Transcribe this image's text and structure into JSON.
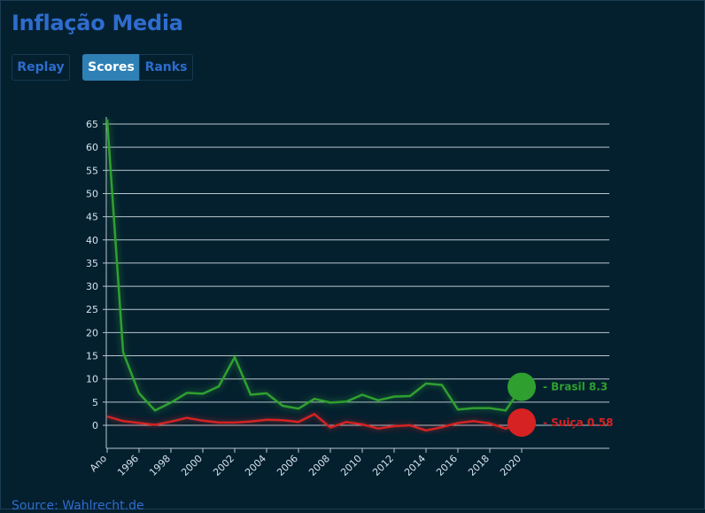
{
  "header": {
    "title": "Inflação Media"
  },
  "controls": {
    "replay_label": "Replay",
    "scores_label": "Scores",
    "ranks_label": "Ranks",
    "active": "Scores"
  },
  "footer": {
    "source_label": "Source: Wahlrecht.de"
  },
  "colors": {
    "background": "#04202f",
    "accent": "#2e6ccd",
    "grid": "#b9c6d0",
    "brasil": "#2fa02f",
    "suica": "#d62222"
  },
  "chart_data": {
    "type": "line",
    "title": "Inflação Media",
    "xlabel": "Ano",
    "ylabel": "",
    "x_tick_labels": [
      "Ano",
      "1996",
      "1998",
      "2000",
      "2002",
      "2004",
      "2006",
      "2008",
      "2010",
      "2012",
      "2014",
      "2016",
      "2018",
      "2020"
    ],
    "y_ticks": [
      0,
      5,
      10,
      15,
      20,
      25,
      30,
      35,
      40,
      45,
      50,
      55,
      60,
      65
    ],
    "ylim": [
      -5,
      68
    ],
    "xlim": [
      1994,
      2026
    ],
    "grid": true,
    "x": [
      1994,
      1995,
      1996,
      1997,
      1998,
      1999,
      2000,
      2001,
      2002,
      2003,
      2004,
      2005,
      2006,
      2007,
      2008,
      2009,
      2010,
      2011,
      2012,
      2013,
      2014,
      2015,
      2016,
      2017,
      2018,
      2019,
      2020
    ],
    "series": [
      {
        "name": "Brasil",
        "color": "#2fa02f",
        "values": [
          66.0,
          15.8,
          6.9,
          3.2,
          4.9,
          7.0,
          6.8,
          8.4,
          14.7,
          6.6,
          6.9,
          4.2,
          3.6,
          5.7,
          4.9,
          5.1,
          6.6,
          5.4,
          6.2,
          6.3,
          9.0,
          8.7,
          3.4,
          3.7,
          3.7,
          3.2,
          8.3
        ],
        "end_label": "Brasil 8.3"
      },
      {
        "name": "Suiça",
        "color": "#d62222",
        "values": [
          1.9,
          0.9,
          0.5,
          0.1,
          0.8,
          1.6,
          1.0,
          0.6,
          0.6,
          0.8,
          1.2,
          1.1,
          0.7,
          2.4,
          -0.5,
          0.7,
          0.2,
          -0.7,
          -0.2,
          0.0,
          -1.1,
          -0.4,
          0.5,
          0.9,
          0.4,
          -0.7,
          0.58
        ],
        "end_label": "Suiça 0.58"
      }
    ]
  }
}
